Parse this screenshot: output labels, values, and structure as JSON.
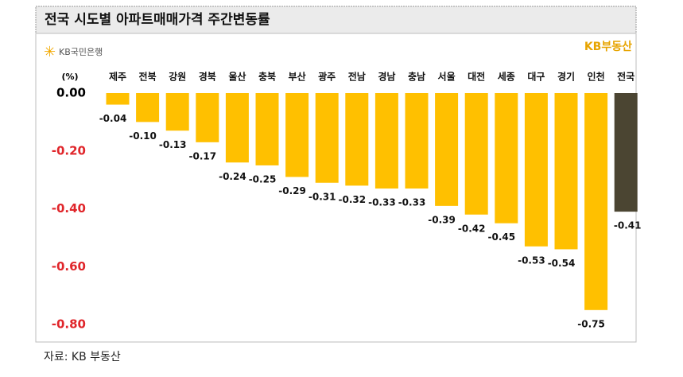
{
  "chart_data": {
    "type": "bar",
    "title": "전국 시도별 아파트매매가격 주간변동률",
    "logo_left": "KB국민은행",
    "logo_right": "KB부동산",
    "y_label": "(%)",
    "source": "자료: KB 부동산",
    "categories": [
      "제주",
      "전북",
      "강원",
      "경북",
      "울산",
      "충북",
      "부산",
      "광주",
      "전남",
      "경남",
      "충남",
      "서울",
      "대전",
      "세종",
      "대구",
      "경기",
      "인천",
      "전국"
    ],
    "values": [
      -0.04,
      -0.1,
      -0.13,
      -0.17,
      -0.24,
      -0.25,
      -0.29,
      -0.31,
      -0.32,
      -0.33,
      -0.33,
      -0.39,
      -0.42,
      -0.45,
      -0.53,
      -0.54,
      -0.75,
      -0.41
    ],
    "value_labels": [
      "-0.04",
      "-0.10",
      "-0.13",
      "-0.17",
      "-0.24",
      "-0.25",
      "-0.29",
      "-0.31",
      "-0.32",
      "-0.33",
      "-0.33",
      "-0.39",
      "-0.42",
      "-0.45",
      "-0.53",
      "-0.54",
      "-0.75",
      "-0.41"
    ],
    "colors": [
      "#FFC000",
      "#FFC000",
      "#FFC000",
      "#FFC000",
      "#FFC000",
      "#FFC000",
      "#FFC000",
      "#FFC000",
      "#FFC000",
      "#FFC000",
      "#FFC000",
      "#FFC000",
      "#FFC000",
      "#FFC000",
      "#FFC000",
      "#FFC000",
      "#FFC000",
      "#4B4532"
    ],
    "ylim": [
      -0.8,
      0
    ],
    "yticks": [
      {
        "value": 0,
        "label": "0.00"
      },
      {
        "value": -0.2,
        "label": "-0.20"
      },
      {
        "value": -0.4,
        "label": "-0.40"
      },
      {
        "value": -0.6,
        "label": "-0.60"
      },
      {
        "value": -0.8,
        "label": "-0.80"
      }
    ],
    "ytick_colors": [
      "#000000",
      "#E0262B",
      "#E0262B",
      "#E0262B",
      "#E0262B"
    ]
  }
}
